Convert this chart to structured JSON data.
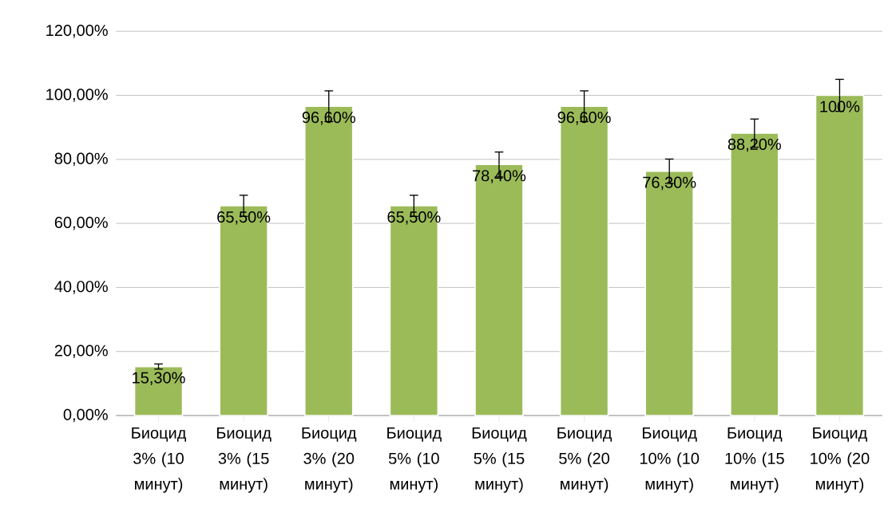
{
  "chart_data": {
    "type": "bar",
    "categories": [
      "Биоцид 3% (10 минут)",
      "Биоцид 3% (15 минут)",
      "Биоцид 3% (20 минут)",
      "Биоцид 5% (10 минут)",
      "Биоцид 5% (15 минут)",
      "Биоцид 5% (20 минут)",
      "Биоцид 10% (10 минут)",
      "Биоцид 10% (15 минут)",
      "Биоцид 10% (20 минут)"
    ],
    "values": [
      15.3,
      65.5,
      96.6,
      65.5,
      78.4,
      96.6,
      76.3,
      88.2,
      100
    ],
    "value_labels": [
      "15,30%",
      "65,50%",
      "96,60%",
      "65,50%",
      "78,40%",
      "96,60%",
      "76,30%",
      "88,20%",
      "100%"
    ],
    "errors": [
      0.8,
      3.3,
      4.8,
      3.3,
      3.9,
      4.8,
      3.8,
      4.4,
      5
    ],
    "color": "#9bbb59",
    "ylim": [
      0,
      120
    ],
    "yticks": [
      {
        "value": 0,
        "label": "0,00%"
      },
      {
        "value": 20,
        "label": "20,00%"
      },
      {
        "value": 40,
        "label": "40,00%"
      },
      {
        "value": 60,
        "label": "60,00%"
      },
      {
        "value": 80,
        "label": "80,00%"
      },
      {
        "value": 100,
        "label": "100,00%"
      },
      {
        "value": 120,
        "label": "120,00%"
      }
    ],
    "grid": "y"
  }
}
